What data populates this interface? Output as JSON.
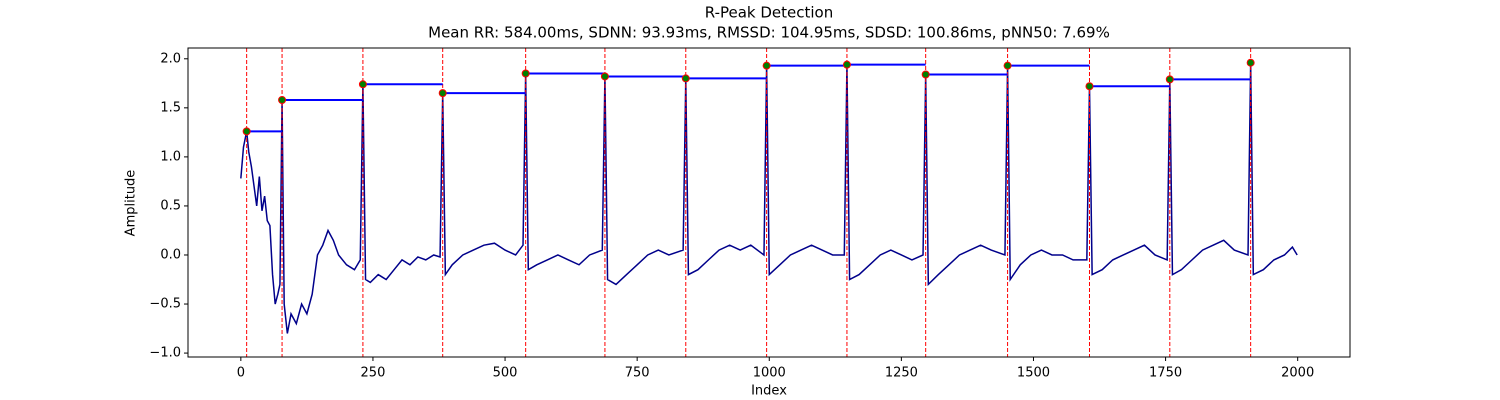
{
  "chart_data": {
    "type": "line",
    "title": "R-Peak Detection",
    "subtitle": "Mean RR: 584.00ms, SDNN: 93.93ms, RMSSD: 104.95ms, SDSD: 100.86ms, pNN50: 7.69%",
    "x_label": "Index",
    "y_label": "Amplitude",
    "xlim": [
      -100,
      2099
    ],
    "ylim": [
      -1.04,
      2.11
    ],
    "xticks": [
      0,
      250,
      500,
      750,
      1000,
      1250,
      1500,
      1750,
      2000
    ],
    "yticks": [
      {
        "value": -1,
        "label": "−1.0"
      },
      {
        "value": -0.5,
        "label": "−0.5"
      },
      {
        "value": 0,
        "label": "0.0"
      },
      {
        "value": 0.5,
        "label": "0.5"
      },
      {
        "value": 1,
        "label": "1.0"
      },
      {
        "value": 1.5,
        "label": "1.5"
      },
      {
        "value": 2,
        "label": "2.0"
      }
    ],
    "series": [
      {
        "color": "#00008b",
        "x": [
          0,
          5,
          11,
          15,
          20,
          25,
          30,
          35,
          40,
          45,
          50,
          55,
          60,
          65,
          70,
          74,
          78,
          82,
          88,
          95,
          105,
          115,
          125,
          135,
          145,
          155,
          165,
          175,
          185,
          200,
          215,
          226,
          231,
          236,
          245,
          260,
          275,
          290,
          305,
          320,
          335,
          350,
          365,
          377,
          382,
          387,
          400,
          420,
          440,
          460,
          480,
          500,
          520,
          534,
          539,
          544,
          560,
          580,
          600,
          620,
          640,
          660,
          684,
          689,
          694,
          710,
          730,
          750,
          770,
          790,
          810,
          837,
          842,
          847,
          865,
          885,
          905,
          925,
          945,
          965,
          990,
          995,
          1000,
          1020,
          1040,
          1060,
          1080,
          1100,
          1120,
          1142,
          1147,
          1152,
          1170,
          1190,
          1210,
          1230,
          1250,
          1270,
          1291,
          1296,
          1301,
          1320,
          1340,
          1360,
          1380,
          1400,
          1420,
          1446,
          1451,
          1456,
          1475,
          1495,
          1515,
          1535,
          1555,
          1575,
          1601,
          1606,
          1611,
          1630,
          1650,
          1670,
          1690,
          1710,
          1730,
          1753,
          1758,
          1763,
          1780,
          1800,
          1820,
          1840,
          1860,
          1880,
          1906,
          1911,
          1916,
          1935,
          1955,
          1975,
          1990,
          1999
        ],
        "values": [
          0.78,
          1.1,
          1.26,
          1.05,
          0.9,
          0.7,
          0.5,
          0.8,
          0.45,
          0.6,
          0.35,
          0.3,
          -0.2,
          -0.5,
          -0.4,
          -0.3,
          1.58,
          -0.5,
          -0.8,
          -0.6,
          -0.7,
          -0.5,
          -0.6,
          -0.4,
          0.0,
          0.1,
          0.25,
          0.15,
          0.0,
          -0.1,
          -0.15,
          -0.05,
          1.74,
          -0.25,
          -0.28,
          -0.2,
          -0.25,
          -0.15,
          -0.05,
          -0.1,
          -0.02,
          -0.05,
          0.0,
          -0.02,
          1.65,
          -0.2,
          -0.1,
          0.0,
          0.05,
          0.1,
          0.12,
          0.05,
          0.0,
          0.1,
          1.85,
          -0.15,
          -0.1,
          -0.05,
          0.0,
          -0.05,
          -0.1,
          0.0,
          0.05,
          1.82,
          -0.25,
          -0.3,
          -0.2,
          -0.1,
          0.0,
          0.05,
          0.0,
          0.05,
          1.8,
          -0.2,
          -0.15,
          -0.05,
          0.05,
          0.1,
          0.05,
          0.1,
          0.0,
          1.93,
          -0.2,
          -0.1,
          0.0,
          0.05,
          0.1,
          0.05,
          0.0,
          0.0,
          1.94,
          -0.25,
          -0.2,
          -0.1,
          0.0,
          0.05,
          0.0,
          -0.05,
          0.0,
          1.84,
          -0.3,
          -0.2,
          -0.1,
          0.0,
          0.05,
          0.1,
          0.05,
          0.0,
          1.93,
          -0.25,
          -0.1,
          0.0,
          0.05,
          0.0,
          0.0,
          -0.05,
          -0.05,
          1.72,
          -0.2,
          -0.15,
          -0.05,
          0.0,
          0.05,
          0.1,
          0.0,
          -0.05,
          1.79,
          -0.2,
          -0.15,
          -0.05,
          0.05,
          0.1,
          0.15,
          0.05,
          0.0,
          1.96,
          -0.2,
          -0.15,
          -0.05,
          0.0,
          0.08,
          0.0
        ]
      }
    ],
    "peaks": {
      "x": [
        11,
        78,
        231,
        382,
        539,
        689,
        842,
        995,
        1147,
        1296,
        1451,
        1606,
        1758,
        1911
      ],
      "values": [
        1.26,
        1.58,
        1.74,
        1.65,
        1.85,
        1.82,
        1.8,
        1.93,
        1.94,
        1.84,
        1.93,
        1.72,
        1.79,
        1.96
      ],
      "color": "#008000",
      "edge_color": "#ff0000",
      "line_color": "#ff0000",
      "step_color": "#0000ff"
    }
  }
}
